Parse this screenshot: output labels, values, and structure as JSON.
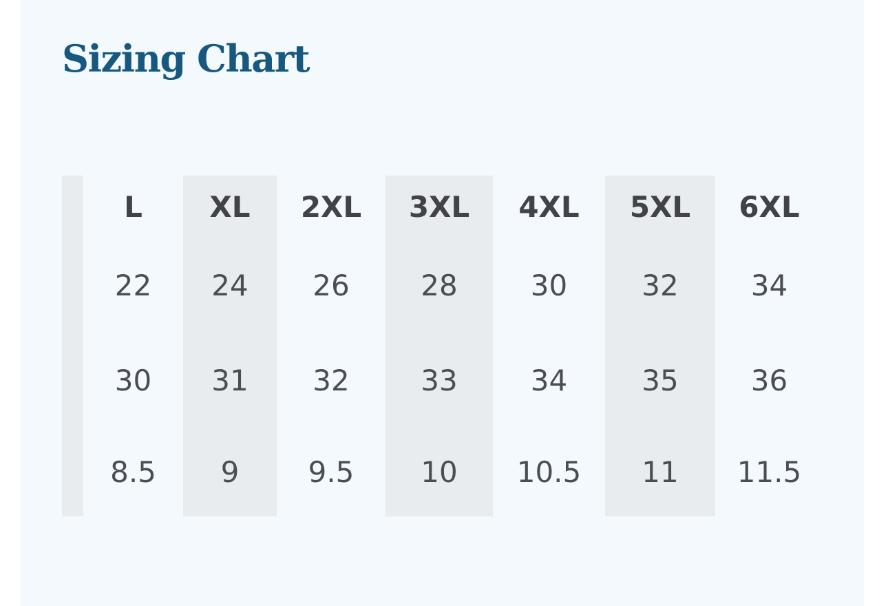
{
  "page": {
    "background": "#ffffff",
    "panel_background": "#f3f9fc"
  },
  "chart_data": {
    "type": "table",
    "title": "Sizing Chart",
    "title_color": "#17587f",
    "stripe_color": "#e9ecef",
    "header_text_color": "#414349",
    "text_color": "#4a4d53",
    "columns": [
      "",
      "L",
      "XL",
      "2XL",
      "3XL",
      "4XL",
      "5XL",
      "6XL"
    ],
    "rows": [
      [
        "",
        "22",
        "24",
        "26",
        "28",
        "30",
        "32",
        "34"
      ],
      [
        "",
        "30",
        "31",
        "32",
        "33",
        "34",
        "35",
        "36"
      ],
      [
        "",
        "8.5",
        "9",
        "9.5",
        "10",
        "10.5",
        "11",
        "11.5"
      ]
    ],
    "layout_hints": {
      "striped_columns": "odd",
      "grid": "off",
      "header_row": true,
      "first_column_empty": true
    }
  }
}
